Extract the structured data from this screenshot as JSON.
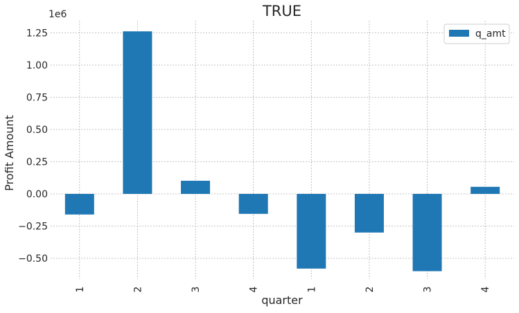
{
  "chart_data": {
    "type": "bar",
    "title": "TRUE",
    "xlabel": "quarter",
    "ylabel": "Profit Amount",
    "offset_label": "1e6",
    "categories": [
      "1",
      "2",
      "3",
      "4",
      "1",
      "2",
      "3",
      "4"
    ],
    "series": [
      {
        "name": "q_amt",
        "color": "#1f77b4",
        "values": [
          -160000,
          1262000,
          102000,
          -155000,
          -580000,
          -300000,
          -600000,
          55000
        ]
      }
    ],
    "yticks": [
      -0.5,
      -0.25,
      0.0,
      0.25,
      0.5,
      0.75,
      1.0,
      1.25
    ],
    "ytick_labels": [
      "−0.50",
      "−0.25",
      "0.00",
      "0.25",
      "0.50",
      "0.75",
      "1.00",
      "1.25"
    ],
    "ytick_scale": 1000000,
    "ylim": [
      -690000,
      1320000
    ],
    "grid": true,
    "legend_position": "top-right"
  }
}
